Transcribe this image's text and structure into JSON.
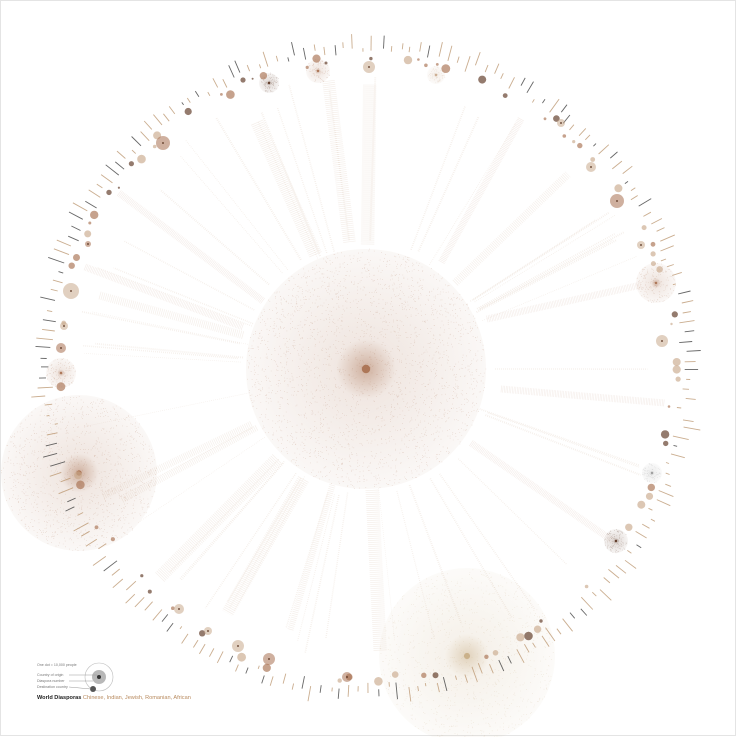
{
  "legend": {
    "scale": "One dot = 10,000 people",
    "origin": "Country of origin",
    "number": "Diaspora number",
    "destination": "Destination country"
  },
  "title": {
    "main": "World Diasporas",
    "groups": "Chinese, Indian, Jewish, Romanian, African"
  },
  "colors": {
    "background": "#ffffff",
    "dot_light": "#c9a98c",
    "dot_mid": "#a87050",
    "dot_dark": "#5a3420",
    "dot_gold": "#c8ad84",
    "dot_gray": "#9a9a9a",
    "label_bar": "#b8926a"
  }
}
